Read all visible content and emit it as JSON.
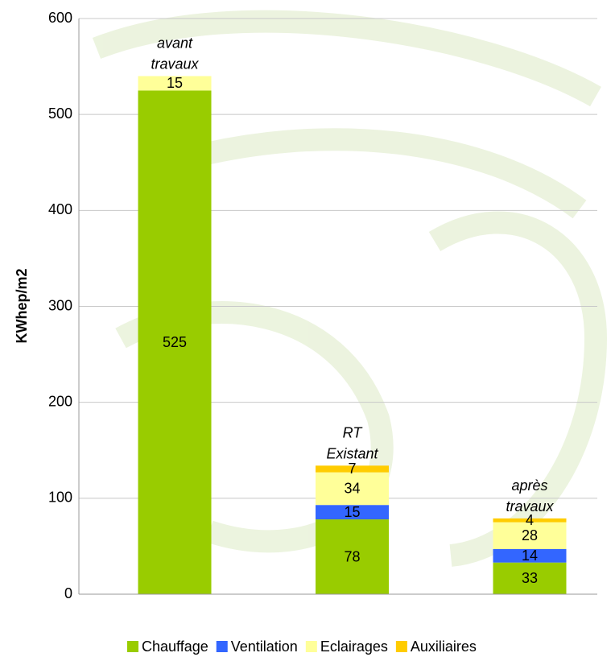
{
  "chart_data": {
    "type": "stacked_bar",
    "y_label": "KWhep/m2",
    "categories": [
      "avant travaux",
      "RT Existant",
      "après travaux"
    ],
    "series": [
      {
        "name": "Chauffage",
        "color": "#99cc00",
        "values": [
          525,
          78,
          33
        ]
      },
      {
        "name": "Ventilation",
        "color": "#3366ff",
        "values": [
          null,
          15,
          14
        ]
      },
      {
        "name": "Eclairages",
        "color": "#ffff99",
        "values": [
          15,
          34,
          28
        ]
      },
      {
        "name": "Auxiliaires",
        "color": "#ffcc00",
        "values": [
          null,
          7,
          4
        ]
      }
    ],
    "ylim": [
      0,
      600
    ],
    "yticks": [
      0,
      100,
      200,
      300,
      400,
      500,
      600
    ],
    "grid": true,
    "legend": "bottom"
  }
}
